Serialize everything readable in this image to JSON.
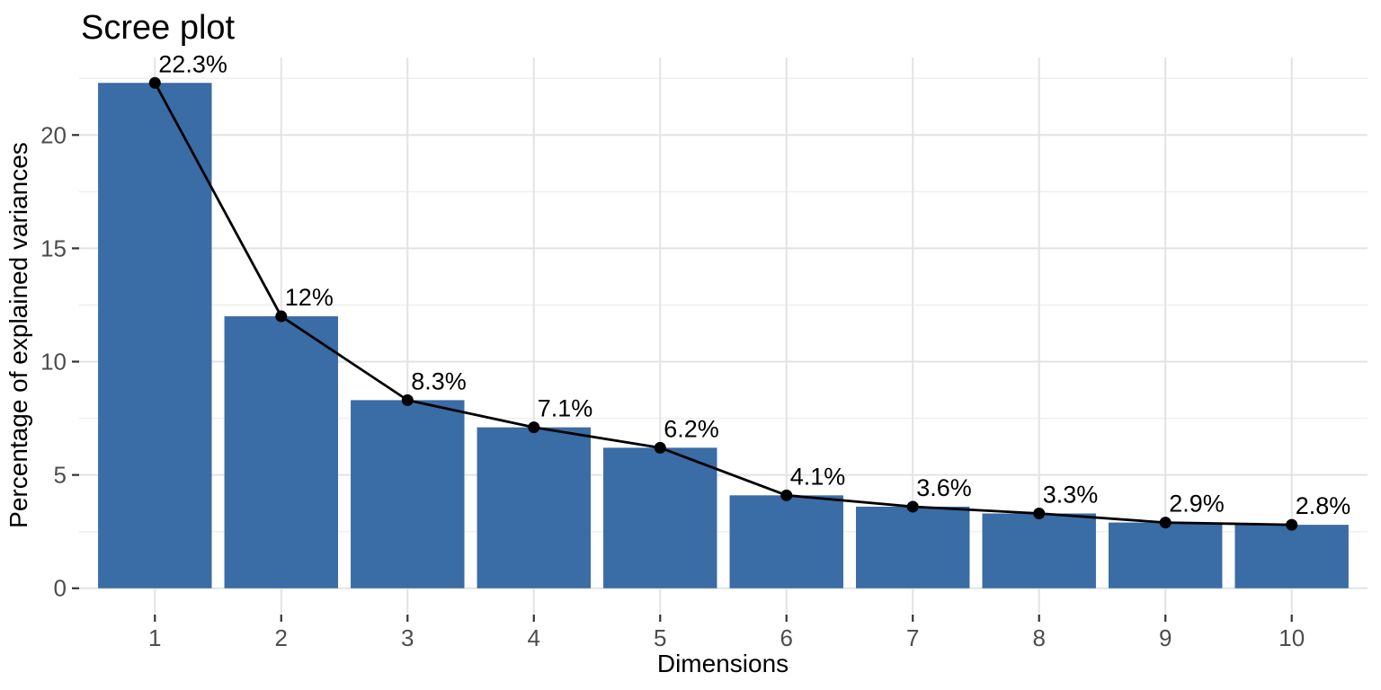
{
  "chart_data": {
    "type": "bar",
    "overlay": "line",
    "title": "Scree plot",
    "xlabel": "Dimensions",
    "ylabel": "Percentage of explained variances",
    "categories": [
      "1",
      "2",
      "3",
      "4",
      "5",
      "6",
      "7",
      "8",
      "9",
      "10"
    ],
    "values": [
      22.3,
      12,
      8.3,
      7.1,
      6.2,
      4.1,
      3.6,
      3.3,
      2.9,
      2.8
    ],
    "point_labels": [
      "22.3%",
      "12%",
      "8.3%",
      "7.1%",
      "6.2%",
      "4.1%",
      "3.6%",
      "3.3%",
      "2.9%",
      "2.8%"
    ],
    "yticks": [
      0,
      5,
      10,
      15,
      20
    ],
    "yticks_minor": [
      2.5,
      7.5,
      12.5,
      17.5,
      22.5
    ],
    "ylim": [
      -1.12,
      23.42
    ],
    "grid": true,
    "legend": "none",
    "colors": {
      "bar_fill": "#3A6CA5",
      "line": "#000000",
      "point": "#000000",
      "label_text": "#000000",
      "title_text": "#000000",
      "axis_title_text": "#000000",
      "tick_text": "#4D4D4D",
      "tick_mark": "#333333",
      "grid_major": "#E3E3E3",
      "grid_minor": "#EFEFEF",
      "background": "#FFFFFF"
    }
  }
}
